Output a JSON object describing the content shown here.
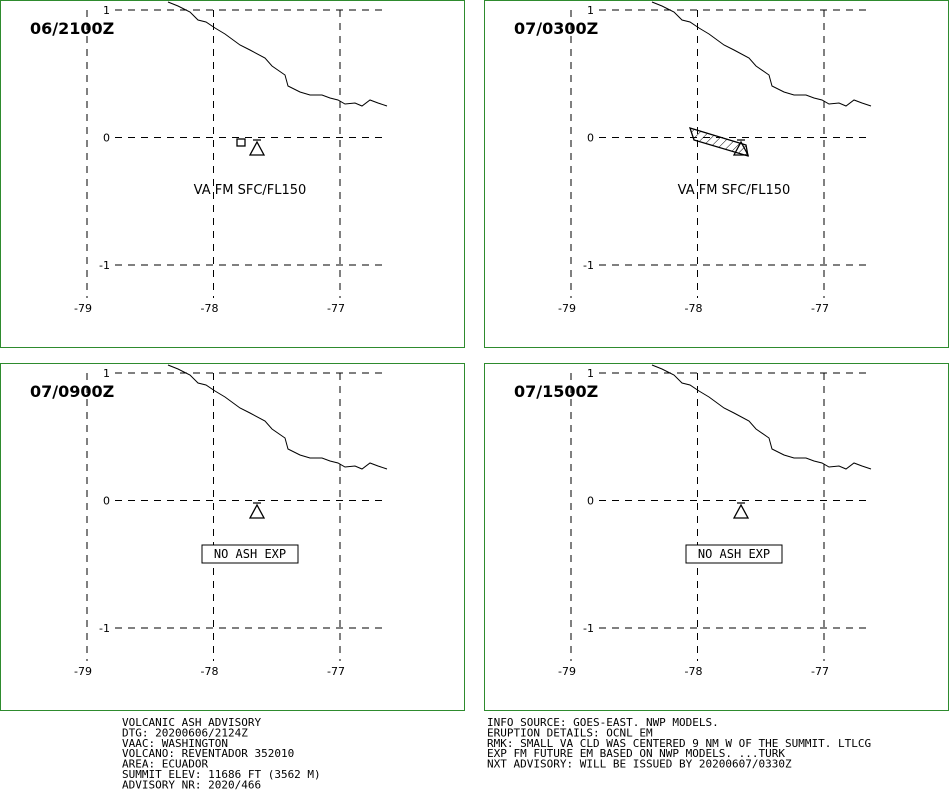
{
  "panels": [
    {
      "time": "06/2100Z",
      "lat_ticks": [
        1,
        0,
        -1
      ],
      "lon_ticks": [
        -79,
        -78,
        -77
      ],
      "label": "VA FM SFC/FL150",
      "label_boxed": false
    },
    {
      "time": "07/0300Z",
      "lat_ticks": [
        1,
        0,
        -1
      ],
      "lon_ticks": [
        -79,
        -78,
        -77
      ],
      "label": "VA FM SFC/FL150",
      "label_boxed": false
    },
    {
      "time": "07/0900Z",
      "lat_ticks": [
        1,
        0,
        -1
      ],
      "lon_ticks": [
        -79,
        -78,
        -77
      ],
      "label": "NO ASH EXP",
      "label_boxed": true
    },
    {
      "time": "07/1500Z",
      "lat_ticks": [
        1,
        0,
        -1
      ],
      "lon_ticks": [
        -79,
        -78,
        -77
      ],
      "label": "NO ASH EXP",
      "label_boxed": true
    }
  ],
  "advisory_left": [
    "VOLCANIC ASH ADVISORY",
    "DTG: 20200606/2124Z",
    "VAAC: WASHINGTON",
    "VOLCANO: REVENTADOR 352010",
    "AREA: ECUADOR",
    "SUMMIT ELEV: 11686 FT (3562 M)",
    "ADVISORY NR: 2020/466"
  ],
  "advisory_right": [
    "INFO SOURCE: GOES-EAST. NWP MODELS.",
    "ERUPTION DETAILS: OCNL EM",
    "RMK: SMALL VA CLD WAS CENTERED 9 NM W OF THE SUMMIT. LTLCG",
    "EXP FM FUTURE EM BASED ON NWP MODELS. ...TURK",
    "NXT ADVISORY: WILL BE ISSUED BY 20200607/0330Z"
  ]
}
